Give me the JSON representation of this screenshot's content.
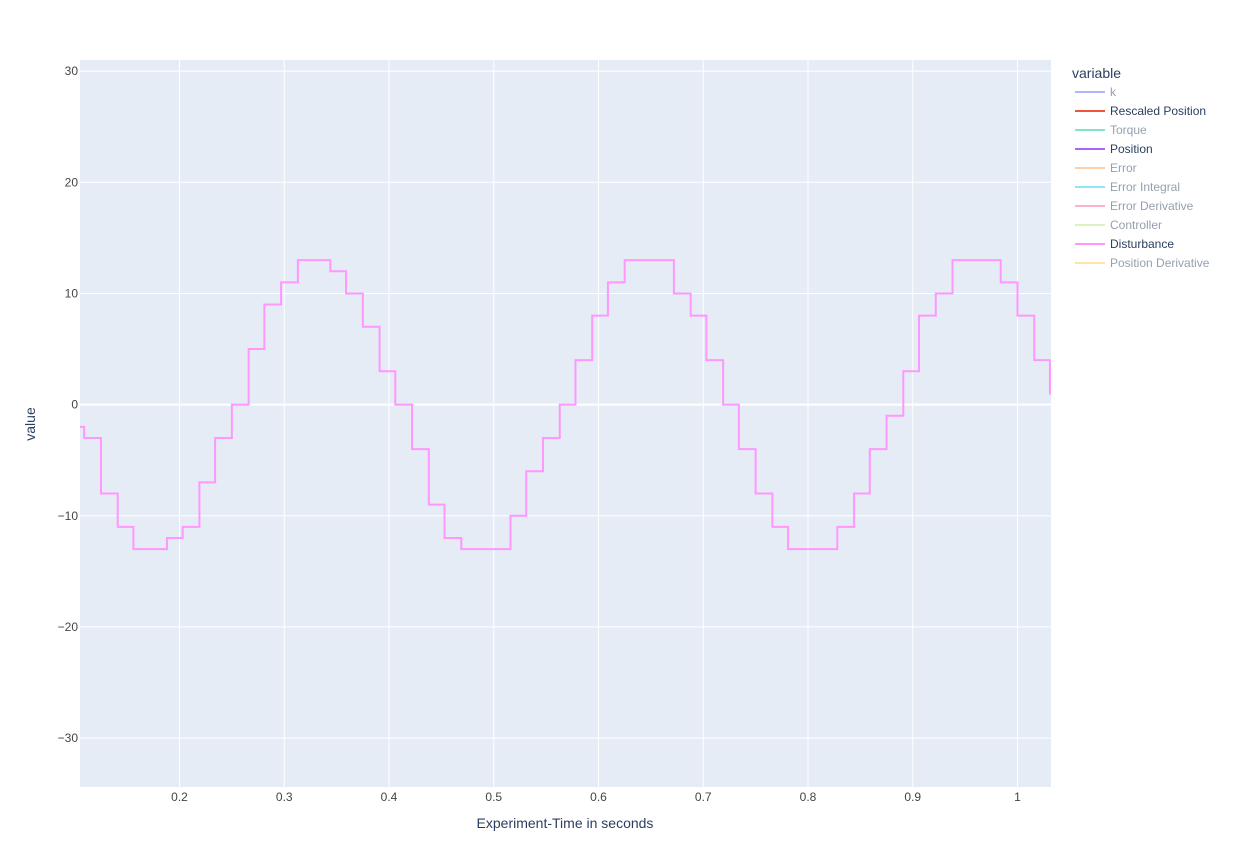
{
  "chart_data": {
    "type": "line",
    "line_shape": "step",
    "xlabel": "Experiment-Time in seconds",
    "ylabel": "value",
    "xlim": [
      0.105,
      1.032
    ],
    "ylim": [
      -34.4,
      31.0
    ],
    "x_ticks": [
      0.2,
      0.3,
      0.4,
      0.5,
      0.6,
      0.7,
      0.8,
      0.9,
      1.0
    ],
    "x_tick_labels": [
      "0.2",
      "0.3",
      "0.4",
      "0.5",
      "0.6",
      "0.7",
      "0.8",
      "0.9",
      "1"
    ],
    "y_ticks": [
      -30,
      -20,
      -10,
      0,
      10,
      20,
      30
    ],
    "y_tick_labels": [
      "−30",
      "−20",
      "−10",
      "0",
      "10",
      "20",
      "30"
    ],
    "grid": true,
    "legend": {
      "title": "variable",
      "placement": "right",
      "items": [
        {
          "name": "k",
          "color": "#636efa",
          "visible": false
        },
        {
          "name": "Rescaled Position",
          "color": "#EF553B",
          "visible": true
        },
        {
          "name": "Torque",
          "color": "#00cc96",
          "visible": false
        },
        {
          "name": "Position",
          "color": "#ab63fa",
          "visible": true
        },
        {
          "name": "Error",
          "color": "#FFA15A",
          "visible": false
        },
        {
          "name": "Error Integral",
          "color": "#19d3f3",
          "visible": false
        },
        {
          "name": "Error Derivative",
          "color": "#FF6692",
          "visible": false
        },
        {
          "name": "Controller",
          "color": "#B6E880",
          "visible": false
        },
        {
          "name": "Disturbance",
          "color": "#FF97FF",
          "visible": true
        },
        {
          "name": "Position Derivative",
          "color": "#FECB52",
          "visible": false
        }
      ]
    },
    "series": [
      {
        "name": "Disturbance",
        "color": "#FF97FF",
        "x": [
          0.1,
          0.109,
          0.125,
          0.141,
          0.156,
          0.172,
          0.188,
          0.203,
          0.219,
          0.234,
          0.25,
          0.266,
          0.281,
          0.297,
          0.313,
          0.328,
          0.344,
          0.359,
          0.375,
          0.391,
          0.406,
          0.422,
          0.438,
          0.453,
          0.469,
          0.484,
          0.5,
          0.516,
          0.531,
          0.547,
          0.563,
          0.578,
          0.594,
          0.609,
          0.625,
          0.641,
          0.656,
          0.672,
          0.688,
          0.703,
          0.719,
          0.734,
          0.75,
          0.766,
          0.781,
          0.797,
          0.813,
          0.828,
          0.844,
          0.859,
          0.875,
          0.891,
          0.906,
          0.922,
          0.938,
          0.953,
          0.969,
          0.984,
          1.0,
          1.016,
          1.031
        ],
        "y": [
          -2,
          -3,
          -8,
          -11,
          -13,
          -13,
          -12,
          -11,
          -7,
          -3,
          0,
          5,
          9,
          11,
          13,
          13,
          12,
          10,
          7,
          3,
          0,
          -4,
          -9,
          -12,
          -13,
          -13,
          -13,
          -10,
          -6,
          -3,
          0,
          4,
          8,
          11,
          13,
          13,
          13,
          10,
          8,
          4,
          0,
          -4,
          -8,
          -11,
          -13,
          -13,
          -13,
          -11,
          -8,
          -4,
          -1,
          3,
          8,
          10,
          13,
          13,
          13,
          11,
          8,
          4,
          1
        ]
      }
    ]
  }
}
